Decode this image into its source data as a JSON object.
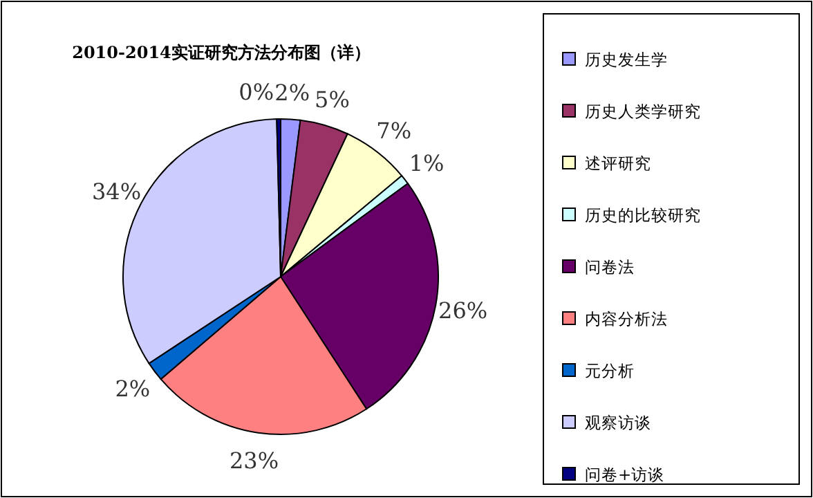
{
  "chart_data": {
    "type": "pie",
    "title": "2010-2014实证研究方法分布图（详）",
    "categories": [
      "历史发生学",
      "历史人类学研究",
      "述评研究",
      "历史的比较研究",
      "问卷法",
      "内容分析法",
      "元分析",
      "观察访谈",
      "问卷+访谈"
    ],
    "values": [
      2,
      5,
      7,
      1,
      26,
      23,
      2,
      34,
      0.4
    ],
    "value_labels": [
      "2%",
      "5%",
      "7%",
      "1%",
      "26%",
      "23%",
      "2%",
      "34%",
      "0%"
    ],
    "colors": [
      "#9999ff",
      "#993366",
      "#ffffcc",
      "#ccffff",
      "#660066",
      "#ff8080",
      "#0066cc",
      "#ccccff",
      "#000080"
    ],
    "legend": "right"
  }
}
